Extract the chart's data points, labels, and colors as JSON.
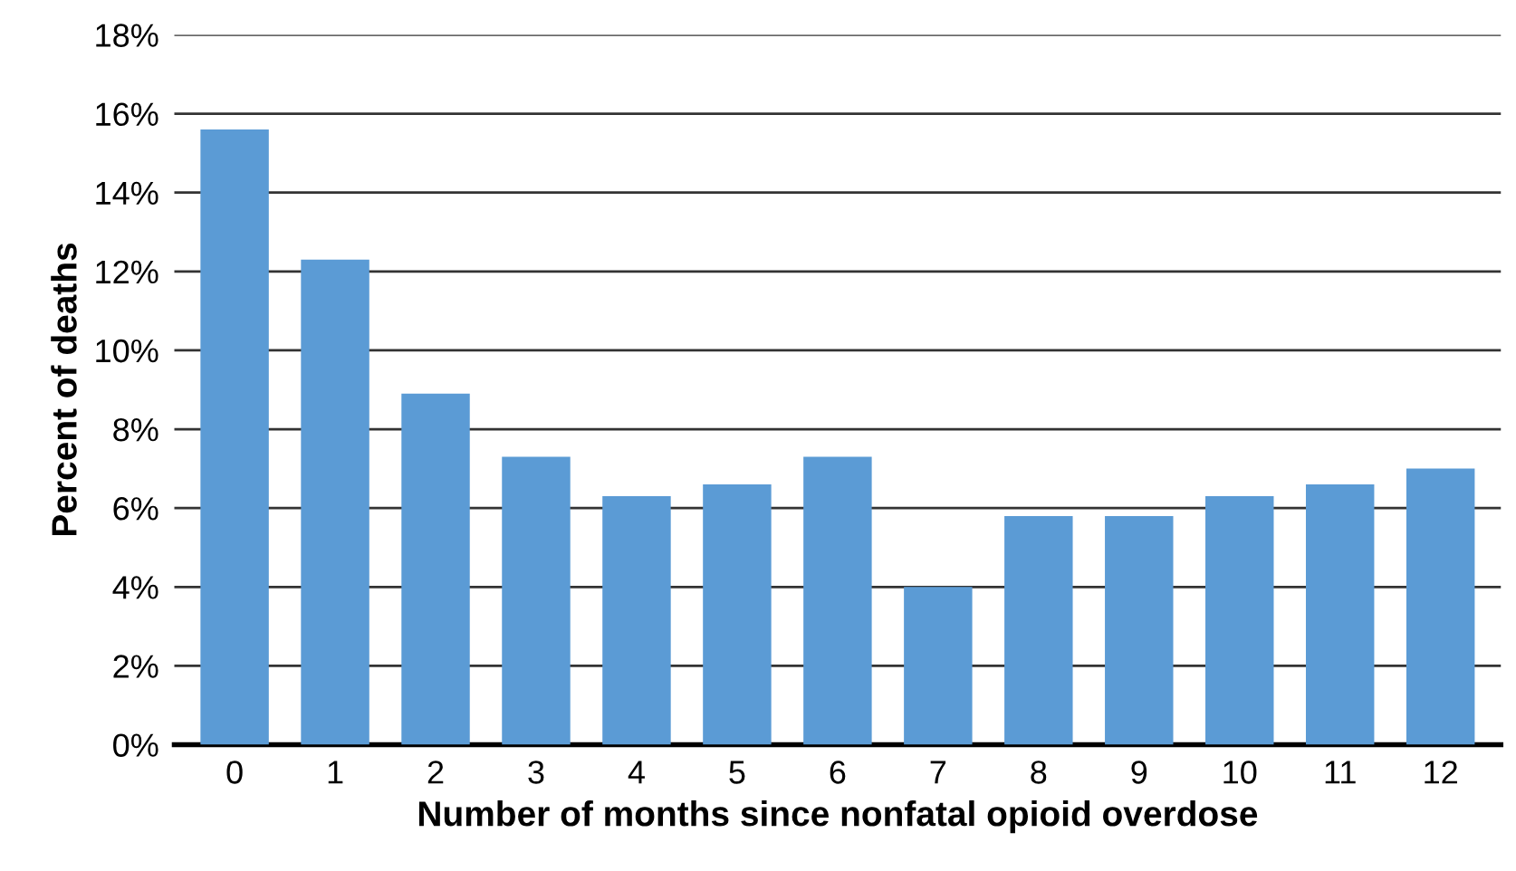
{
  "chart_data": {
    "type": "bar",
    "xlabel": "Number of months since nonfatal opioid overdose",
    "ylabel": "Percent of deaths",
    "categories": [
      "0",
      "1",
      "2",
      "3",
      "4",
      "5",
      "6",
      "7",
      "8",
      "9",
      "10",
      "11",
      "12"
    ],
    "values": [
      15.6,
      12.3,
      8.9,
      7.3,
      6.3,
      6.6,
      7.3,
      4.0,
      5.8,
      5.8,
      6.3,
      6.6,
      7.0
    ],
    "color": "#5b9bd5",
    "ylim": [
      0,
      18
    ],
    "yticks": [
      {
        "value": 0,
        "label": "0%"
      },
      {
        "value": 2,
        "label": "2%"
      },
      {
        "value": 4,
        "label": "4%"
      },
      {
        "value": 6,
        "label": "6%"
      },
      {
        "value": 8,
        "label": "8%"
      },
      {
        "value": 10,
        "label": "10%"
      },
      {
        "value": 12,
        "label": "12%"
      },
      {
        "value": 14,
        "label": "14%"
      },
      {
        "value": 16,
        "label": "16%"
      },
      {
        "value": 18,
        "label": "18%"
      }
    ],
    "grid": "y"
  }
}
